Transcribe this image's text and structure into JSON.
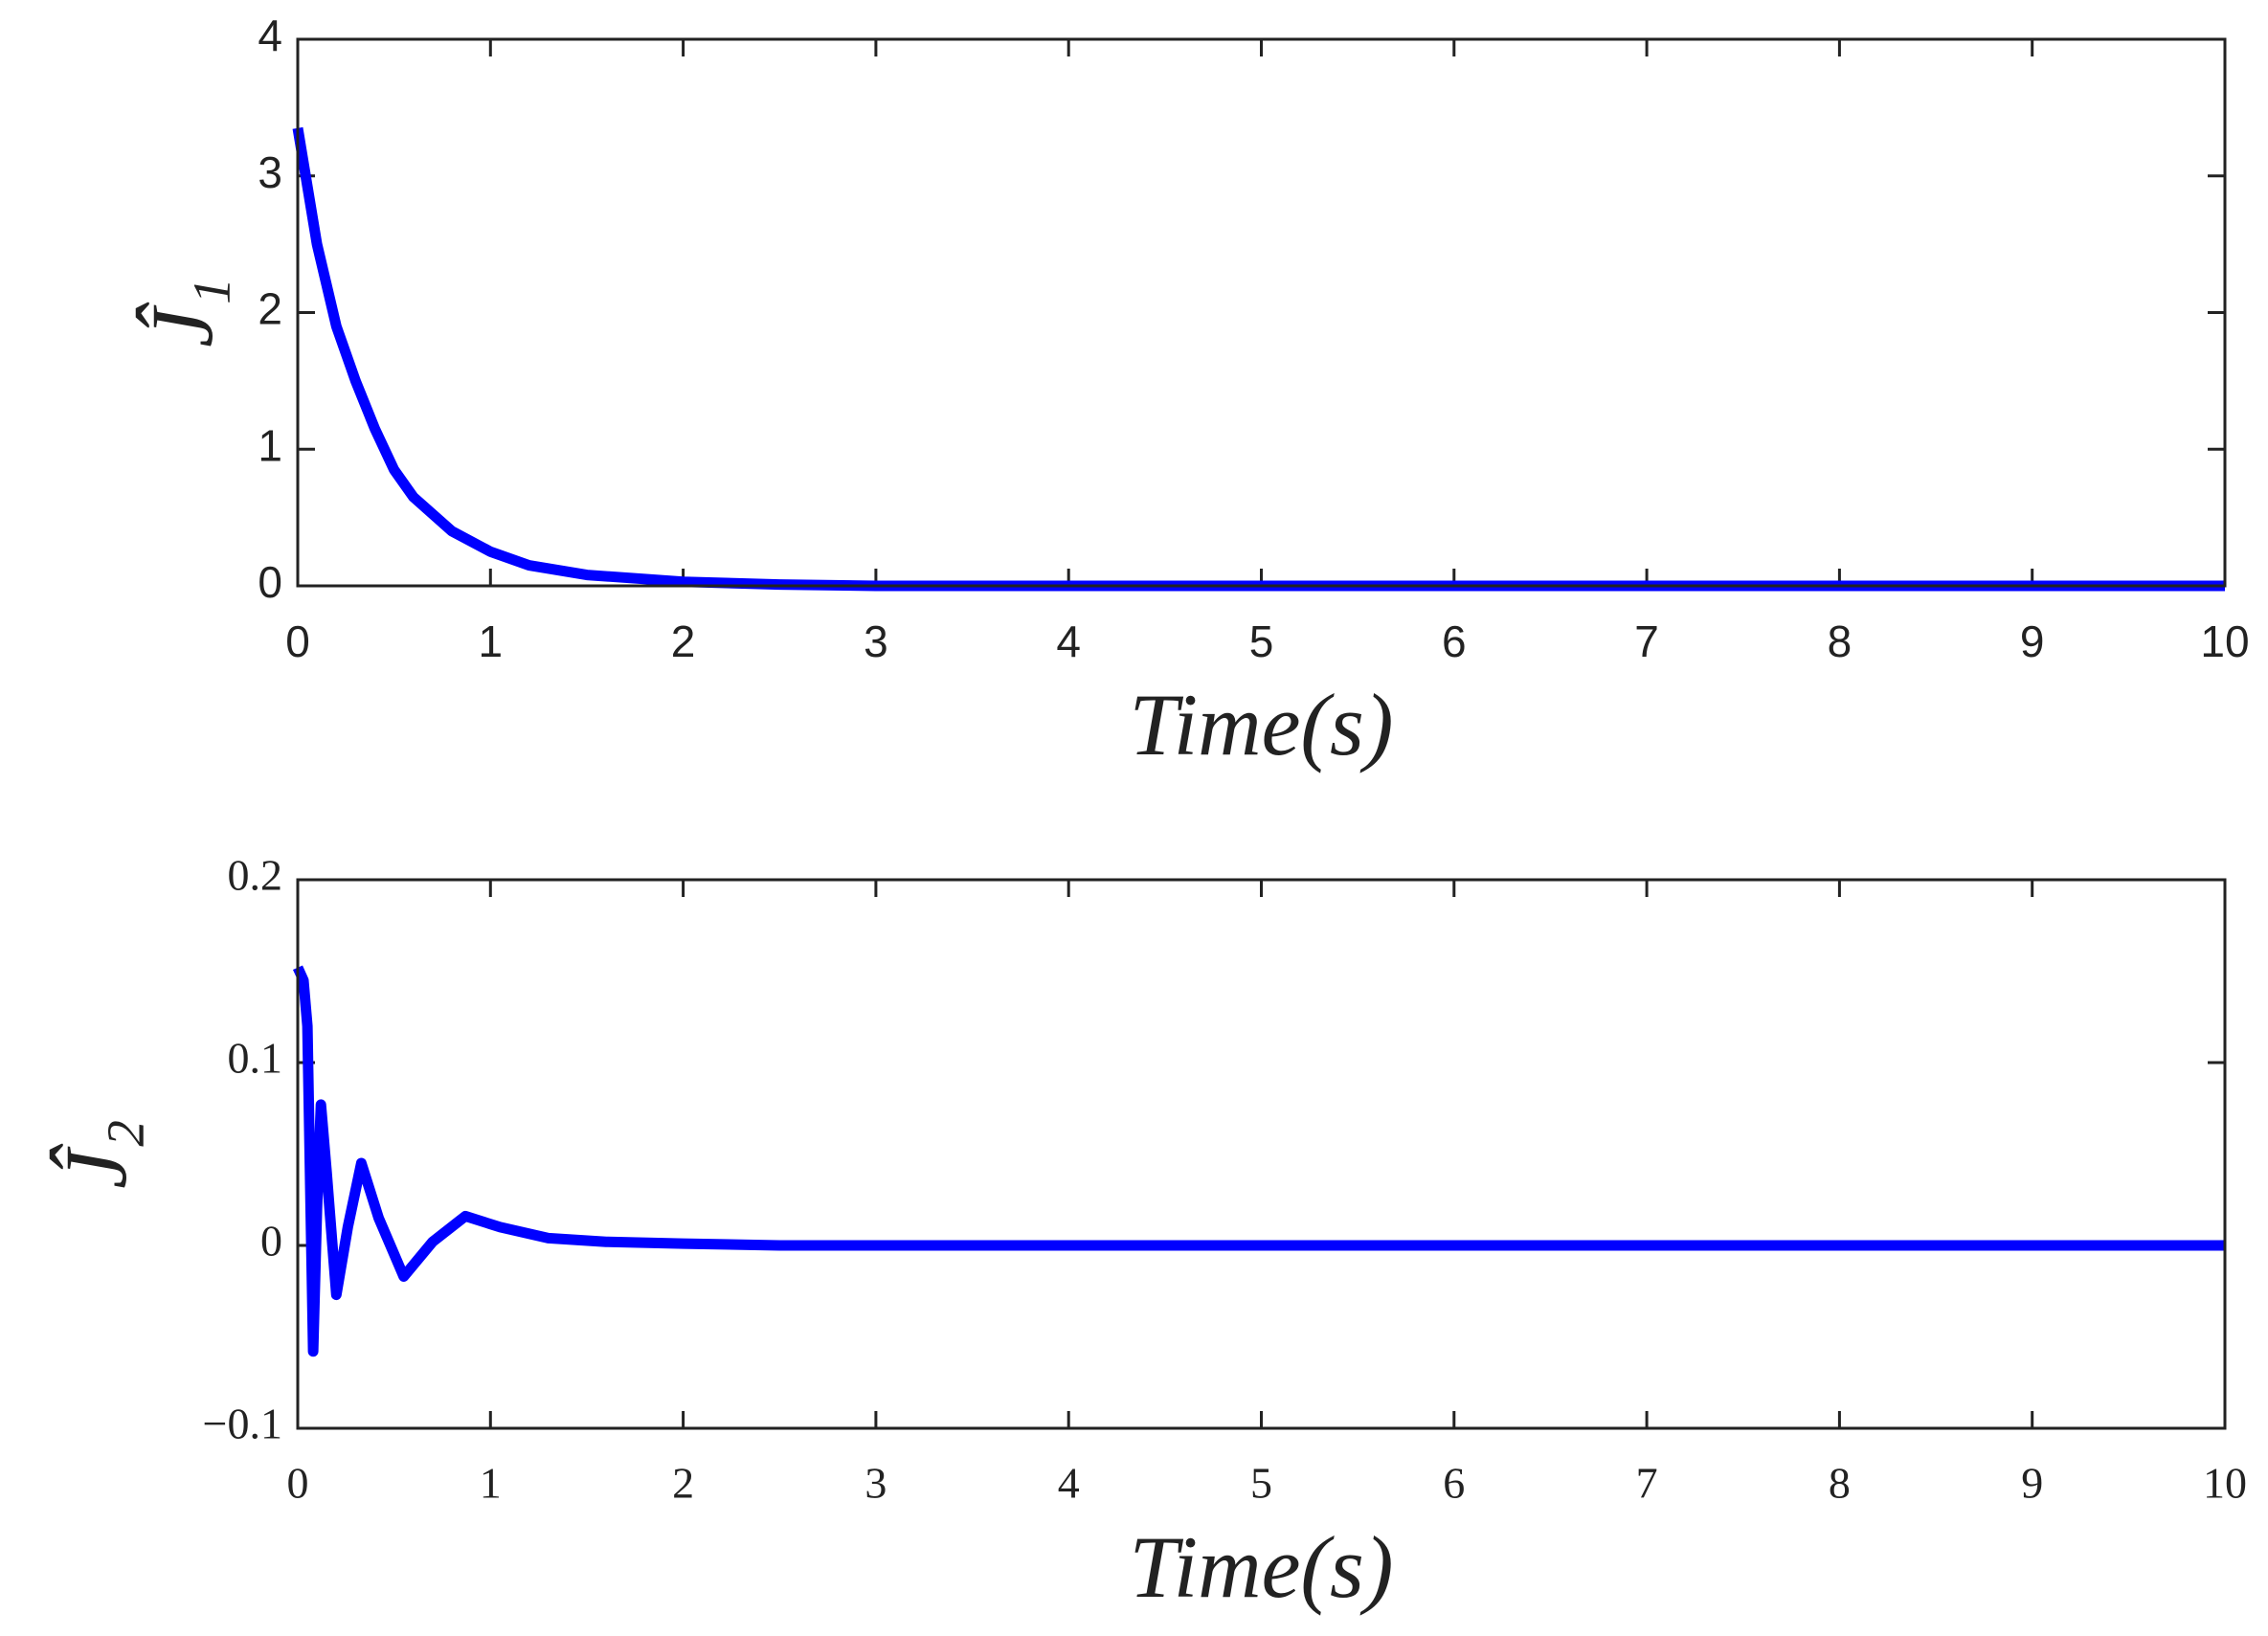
{
  "chart_data": [
    {
      "type": "line",
      "x_label": "Time(s)",
      "y_label": "Ĵ₁",
      "xlim": [
        0,
        10
      ],
      "xticks": [
        0,
        1,
        2,
        3,
        4,
        5,
        6,
        7,
        8,
        9,
        10
      ],
      "ylim": [
        0,
        4
      ],
      "yticks": [
        0,
        1,
        2,
        3,
        4
      ],
      "series": [
        {
          "color": "#0000ff",
          "x": [
            0,
            0.1,
            0.2,
            0.3,
            0.4,
            0.5,
            0.6,
            0.8,
            1.0,
            1.2,
            1.5,
            2,
            2.5,
            3,
            4,
            5,
            6,
            7,
            8,
            9,
            10
          ],
          "values": [
            3.35,
            2.5,
            1.9,
            1.5,
            1.15,
            0.85,
            0.65,
            0.4,
            0.25,
            0.15,
            0.08,
            0.03,
            0.01,
            0,
            0,
            0,
            0,
            0,
            0,
            0,
            0
          ]
        }
      ]
    },
    {
      "type": "line",
      "x_label": "Time(s)",
      "y_label": "Ĵ₂",
      "xlim": [
        0,
        10
      ],
      "xticks": [
        0,
        1,
        2,
        3,
        4,
        5,
        6,
        7,
        8,
        9,
        10
      ],
      "ylim": [
        -0.1,
        0.2
      ],
      "yticks": [
        {
          "value": -0.1,
          "label": "−0.1"
        },
        0,
        0.1,
        0.2
      ],
      "series": [
        {
          "color": "#0000ff",
          "x": [
            0,
            0.03,
            0.05,
            0.08,
            0.1,
            0.12,
            0.15,
            0.2,
            0.26,
            0.33,
            0.42,
            0.55,
            0.7,
            0.87,
            1.05,
            1.3,
            1.6,
            2,
            2.5,
            3,
            4,
            5,
            6,
            7,
            8,
            9,
            10
          ],
          "values": [
            0.152,
            0.145,
            0.12,
            -0.058,
            0.02,
            0.077,
            0.04,
            -0.027,
            0.01,
            0.045,
            0.015,
            -0.017,
            0.002,
            0.016,
            0.01,
            0.004,
            0.002,
            0.001,
            0,
            0,
            0,
            0,
            0,
            0,
            0,
            0,
            0
          ]
        }
      ]
    }
  ]
}
